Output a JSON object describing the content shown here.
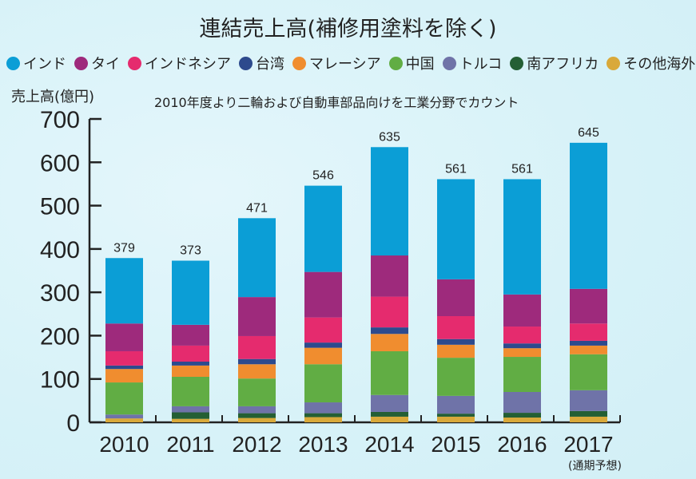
{
  "chart_data": {
    "type": "bar",
    "stacked": true,
    "title": "連結売上高(補修用塗料を除く)",
    "subtitle": "2010年度より二輪および自動車部品向けを工業分野でカウント",
    "ylabel": "売上高(億円)",
    "xlabel": "",
    "ylim": [
      0,
      700
    ],
    "yticks": [
      0,
      100,
      200,
      300,
      400,
      500,
      600,
      700
    ],
    "categories": [
      "2010",
      "2011",
      "2012",
      "2013",
      "2014",
      "2015",
      "2016",
      "2017"
    ],
    "category_notes": {
      "2017": "(通期予想)"
    },
    "totals": [
      379,
      373,
      471,
      546,
      635,
      561,
      561,
      645
    ],
    "legend_position": "top",
    "series": [
      {
        "name": "その他海外",
        "color": "#d9a93a",
        "values": [
          9,
          8,
          10,
          12,
          13,
          13,
          11,
          13
        ]
      },
      {
        "name": "南アフリカ",
        "color": "#245f34",
        "values": [
          0,
          15,
          11,
          9,
          11,
          7,
          11,
          13
        ]
      },
      {
        "name": "トルコ",
        "color": "#6f73a8",
        "values": [
          9,
          14,
          16,
          25,
          39,
          41,
          48,
          48
        ]
      },
      {
        "name": "中国",
        "color": "#61ad44",
        "values": [
          74,
          68,
          64,
          88,
          101,
          88,
          81,
          83
        ]
      },
      {
        "name": "マレーシア",
        "color": "#f08d2f",
        "values": [
          31,
          26,
          33,
          38,
          40,
          30,
          20,
          20
        ]
      },
      {
        "name": "台湾",
        "color": "#2d4a8d",
        "values": [
          8,
          9,
          12,
          12,
          15,
          13,
          11,
          11
        ]
      },
      {
        "name": "インドネシア",
        "color": "#e52b6e",
        "values": [
          33,
          37,
          53,
          58,
          71,
          53,
          39,
          40
        ]
      },
      {
        "name": "タイ",
        "color": "#9e2a7c",
        "values": [
          64,
          48,
          90,
          105,
          95,
          85,
          74,
          80
        ]
      },
      {
        "name": "インド",
        "color": "#0b9ed6",
        "values": [
          151,
          148,
          182,
          199,
          250,
          231,
          266,
          337
        ]
      }
    ]
  },
  "legend_order": [
    "インド",
    "タイ",
    "インドネシア",
    "台湾",
    "マレーシア",
    "中国",
    "トルコ",
    "南アフリカ",
    "その他海外"
  ]
}
